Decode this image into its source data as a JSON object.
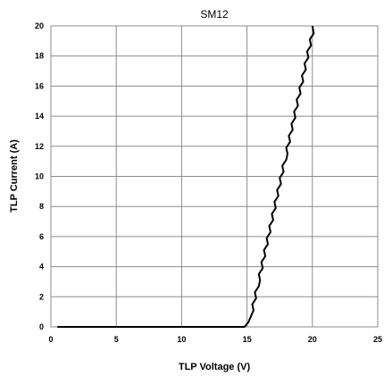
{
  "chart_data": {
    "type": "line",
    "title": "SM12",
    "xlabel": "TLP Voltage (V)",
    "ylabel": "TLP Current (A)",
    "xlim": [
      0,
      25
    ],
    "ylim": [
      0,
      20
    ],
    "x_ticks": [
      "0",
      "5",
      "10",
      "15",
      "20",
      "25"
    ],
    "y_ticks": [
      "0",
      "2",
      "4",
      "6",
      "8",
      "10",
      "12",
      "14",
      "16",
      "18",
      "20"
    ],
    "grid": true,
    "legend": "none",
    "series": [
      {
        "color": "#000000",
        "x": [
          0.5,
          5,
          10,
          14.8,
          15.1,
          15.3,
          15.5,
          15.4,
          15.7,
          15.6,
          15.9,
          16.0,
          15.9,
          16.2,
          16.1,
          16.4,
          16.3,
          16.6,
          16.5,
          16.8,
          16.7,
          17.0,
          16.9,
          17.2,
          17.1,
          17.4,
          17.3,
          17.6,
          17.5,
          17.8,
          17.7,
          18.0,
          18.1,
          18.0,
          18.3,
          18.2,
          18.5,
          18.4,
          18.7,
          18.6,
          18.9,
          18.8,
          19.1,
          19.0,
          19.3,
          19.2,
          19.5,
          19.4,
          19.7,
          19.6,
          19.9,
          19.8,
          20.1,
          20.0
        ],
        "y": [
          0,
          0,
          0,
          0,
          0.3,
          0.7,
          1.1,
          1.5,
          1.9,
          2.3,
          2.7,
          3.1,
          3.5,
          3.9,
          4.3,
          4.7,
          5.1,
          5.5,
          5.9,
          6.3,
          6.7,
          7.1,
          7.5,
          7.9,
          8.3,
          8.7,
          9.1,
          9.5,
          9.9,
          10.3,
          10.7,
          11.1,
          11.5,
          11.9,
          12.3,
          12.7,
          13.1,
          13.5,
          13.9,
          14.3,
          14.7,
          15.1,
          15.5,
          15.9,
          16.3,
          16.7,
          17.1,
          17.5,
          17.9,
          18.3,
          18.7,
          19.1,
          19.5,
          20.0
        ]
      }
    ]
  }
}
